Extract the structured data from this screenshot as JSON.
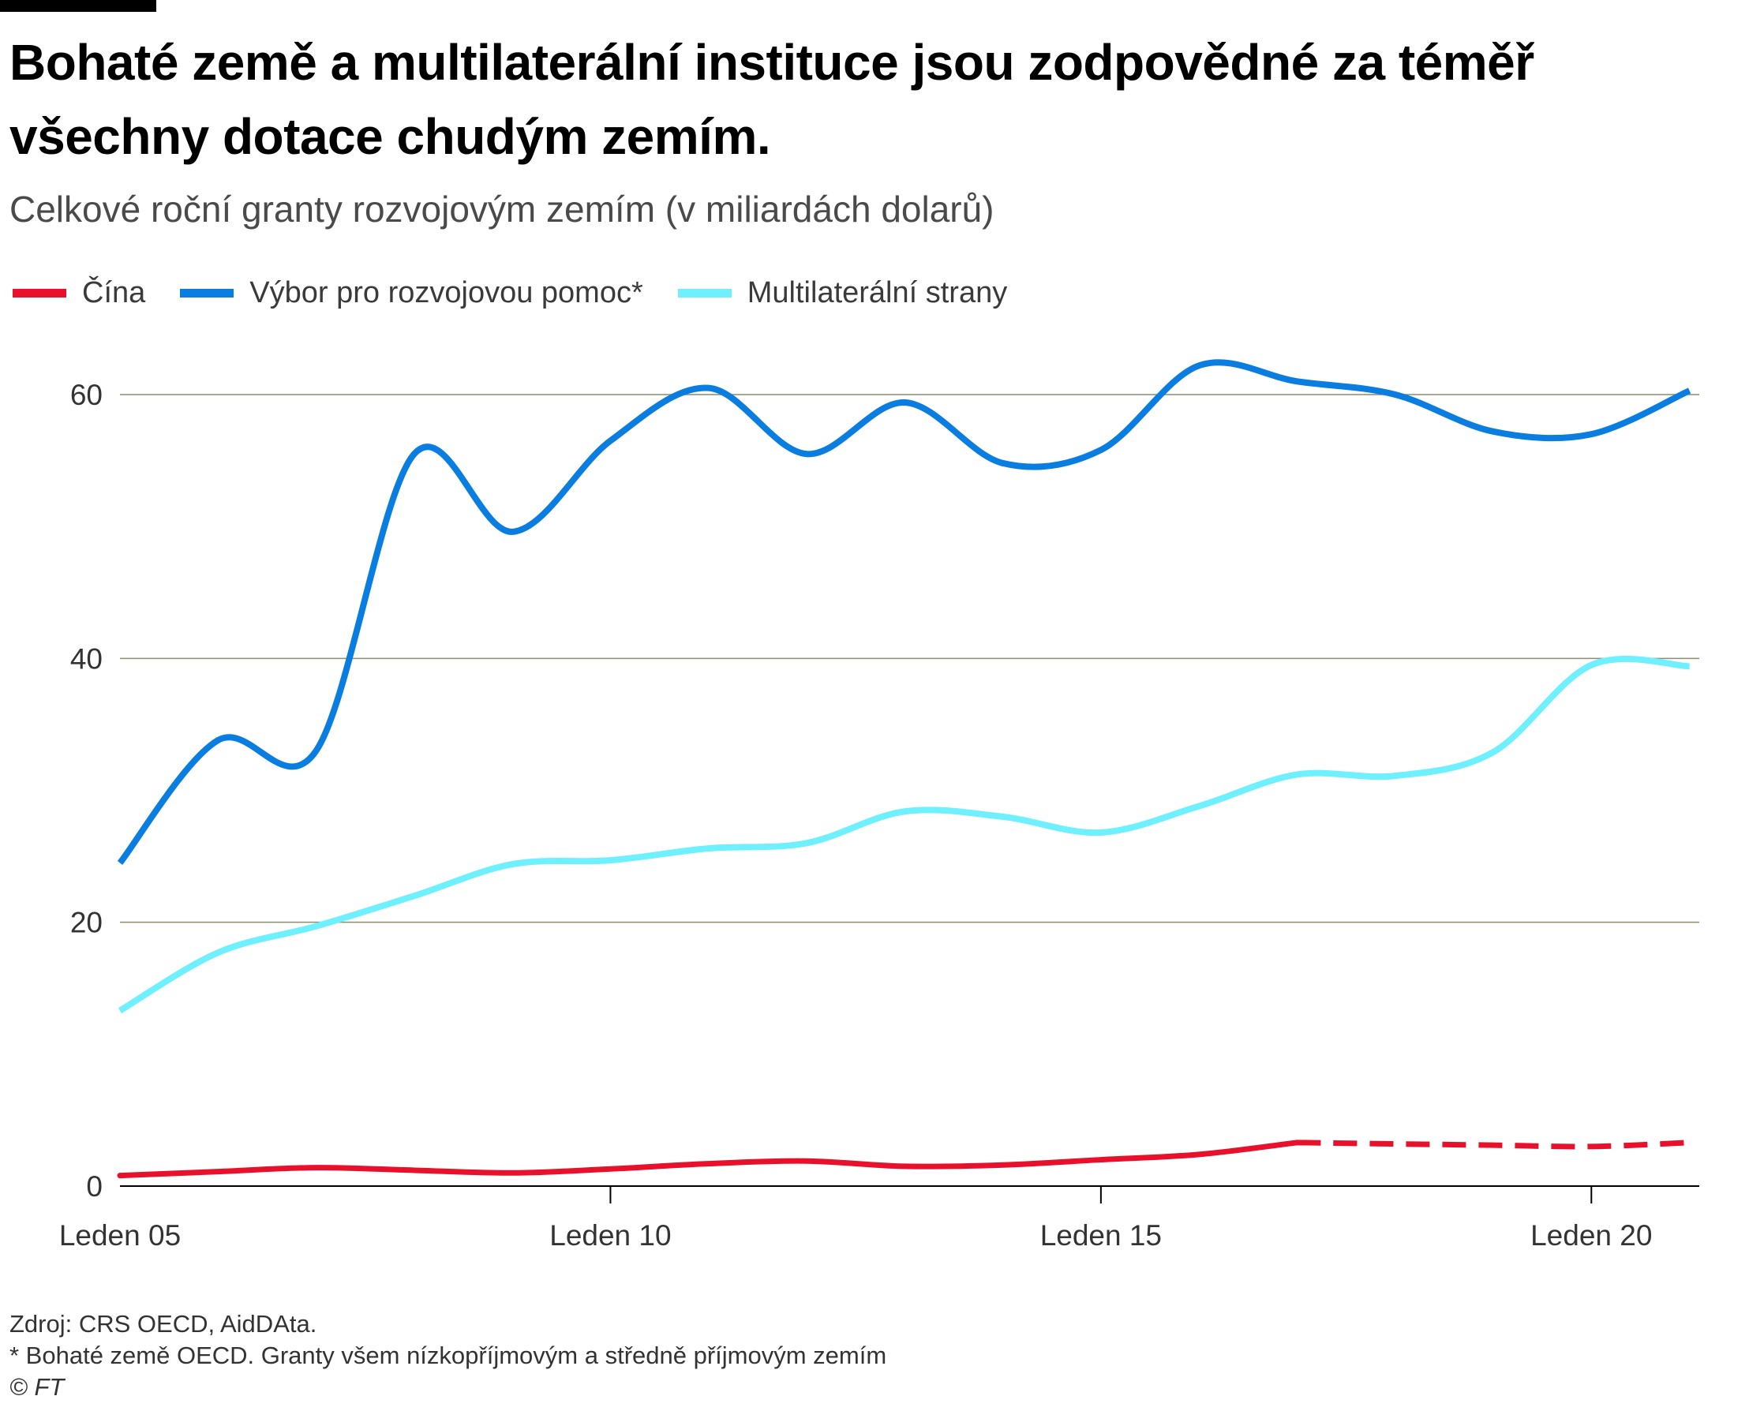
{
  "title": "Bohaté země a multilaterální instituce jsou zodpovědné za téměř všechny dotace chudým zemím.",
  "subtitle": "Celkové roční granty rozvojovým zemím (v miliardách dolarů)",
  "legend": [
    {
      "label": "Čína",
      "color": "#e8102a"
    },
    {
      "label": "Výbor pro rozvojovou pomoc*",
      "color": "#0a7de0"
    },
    {
      "label": "Multilaterální strany",
      "color": "#6ef0ff"
    }
  ],
  "footer": {
    "source": "Zdroj: CRS OECD, AidDAta.",
    "note": "* Bohaté země OECD. Granty všem nízkopříjmovým a středně příjmovým zemím",
    "copyright": "© FT"
  },
  "chart_data": {
    "type": "line",
    "title": "Bohaté země a multilaterální instituce jsou zodpovědné za téměř všechny dotace chudým zemím.",
    "subtitle": "Celkové roční granty rozvojovým zemím (v miliardách dolarů)",
    "x": [
      2005,
      2006,
      2007,
      2008,
      2009,
      2010,
      2011,
      2012,
      2013,
      2014,
      2015,
      2016,
      2017,
      2018,
      2019,
      2020,
      2021
    ],
    "x_ticks": [
      {
        "value": 2005,
        "label": "Leden 05"
      },
      {
        "value": 2010,
        "label": "Leden 10"
      },
      {
        "value": 2015,
        "label": "Leden 15"
      },
      {
        "value": 2020,
        "label": "Leden 20"
      }
    ],
    "xlim": [
      2005,
      2021.1
    ],
    "ylim": [
      0,
      60
    ],
    "y_ticks": [
      0,
      20,
      40,
      60
    ],
    "grid": "horizontal",
    "series": [
      {
        "name": "Výbor pro rozvojovou pomoc*",
        "color": "#0a7de0",
        "values": [
          24.5,
          33.8,
          33.0,
          55.5,
          49.6,
          56.5,
          60.5,
          55.5,
          59.4,
          54.8,
          55.8,
          62.2,
          61.0,
          60.0,
          57.2,
          57.0,
          60.3
        ]
      },
      {
        "name": "Multilaterální strany",
        "color": "#6ef0ff",
        "values": [
          13.3,
          17.7,
          19.7,
          22.0,
          24.4,
          24.7,
          25.6,
          26.0,
          28.4,
          28.0,
          26.8,
          28.8,
          31.2,
          31.1,
          32.9,
          39.5,
          39.4
        ]
      },
      {
        "name": "Čína",
        "color": "#e8102a",
        "values": [
          0.8,
          1.1,
          1.4,
          1.2,
          1.0,
          1.3,
          1.7,
          1.9,
          1.5,
          1.6,
          2.0,
          2.4,
          3.3,
          3.2,
          3.1,
          3.0,
          3.3
        ],
        "dashed_from": 2017
      }
    ]
  }
}
